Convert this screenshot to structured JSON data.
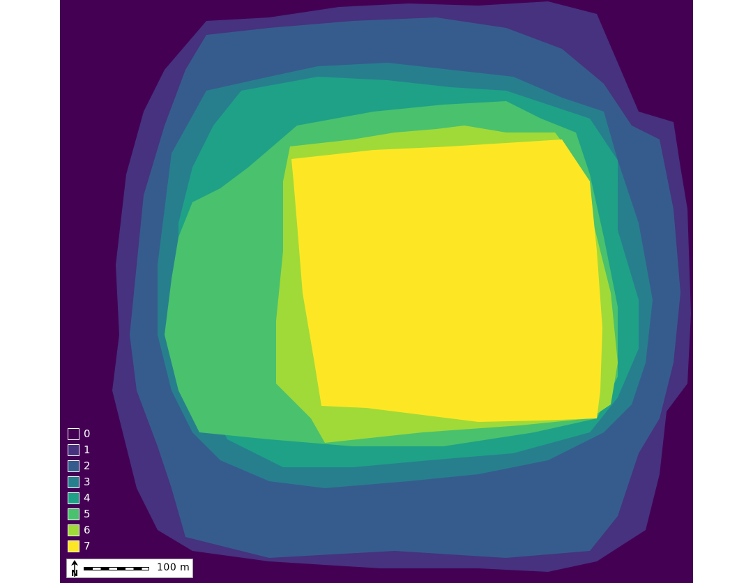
{
  "map": {
    "background_color": "#440154",
    "palette": "viridis",
    "layers": [
      {
        "value": 1,
        "color": "#46327e"
      },
      {
        "value": 2,
        "color": "#365c8d"
      },
      {
        "value": 3,
        "color": "#277f8e"
      },
      {
        "value": 4,
        "color": "#1fa187"
      },
      {
        "value": 5,
        "color": "#4ac16d"
      },
      {
        "value": 6,
        "color": "#a0da39"
      },
      {
        "value": 7,
        "color": "#fde725"
      }
    ]
  },
  "legend": {
    "items": [
      {
        "label": "0",
        "color": "#440154"
      },
      {
        "label": "1",
        "color": "#46327e"
      },
      {
        "label": "2",
        "color": "#365c8d"
      },
      {
        "label": "3",
        "color": "#277f8e"
      },
      {
        "label": "4",
        "color": "#1fa187"
      },
      {
        "label": "5",
        "color": "#4ac16d"
      },
      {
        "label": "6",
        "color": "#a0da39"
      },
      {
        "label": "7",
        "color": "#fde725"
      }
    ]
  },
  "scalebar": {
    "label": "100 m",
    "north_label": "N",
    "north_icon": "north-arrow-icon"
  }
}
